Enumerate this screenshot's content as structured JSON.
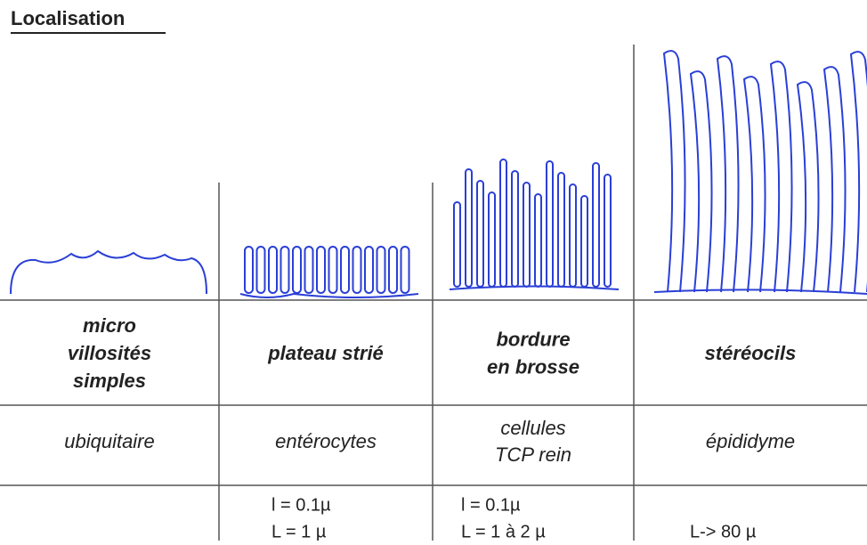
{
  "header": {
    "title": "Localisation"
  },
  "columns": [
    {
      "name": [
        "micro",
        "villosités",
        "simples"
      ],
      "location": [
        "ubiquitaire"
      ]
    },
    {
      "name": [
        "plateau strié"
      ],
      "location": [
        "entérocytes"
      ],
      "size": [
        "l = 0.1µ",
        "L = 1 µ"
      ]
    },
    {
      "name": [
        "bordure",
        "en brosse"
      ],
      "location": [
        "cellules",
        "TCP rein"
      ],
      "size": [
        "l = 0.1µ",
        "L = 1 à 2 µ"
      ]
    },
    {
      "name": [
        "stéréocils"
      ],
      "location": [
        "épididyme"
      ],
      "size": [
        "L-> 80 µ"
      ]
    }
  ]
}
